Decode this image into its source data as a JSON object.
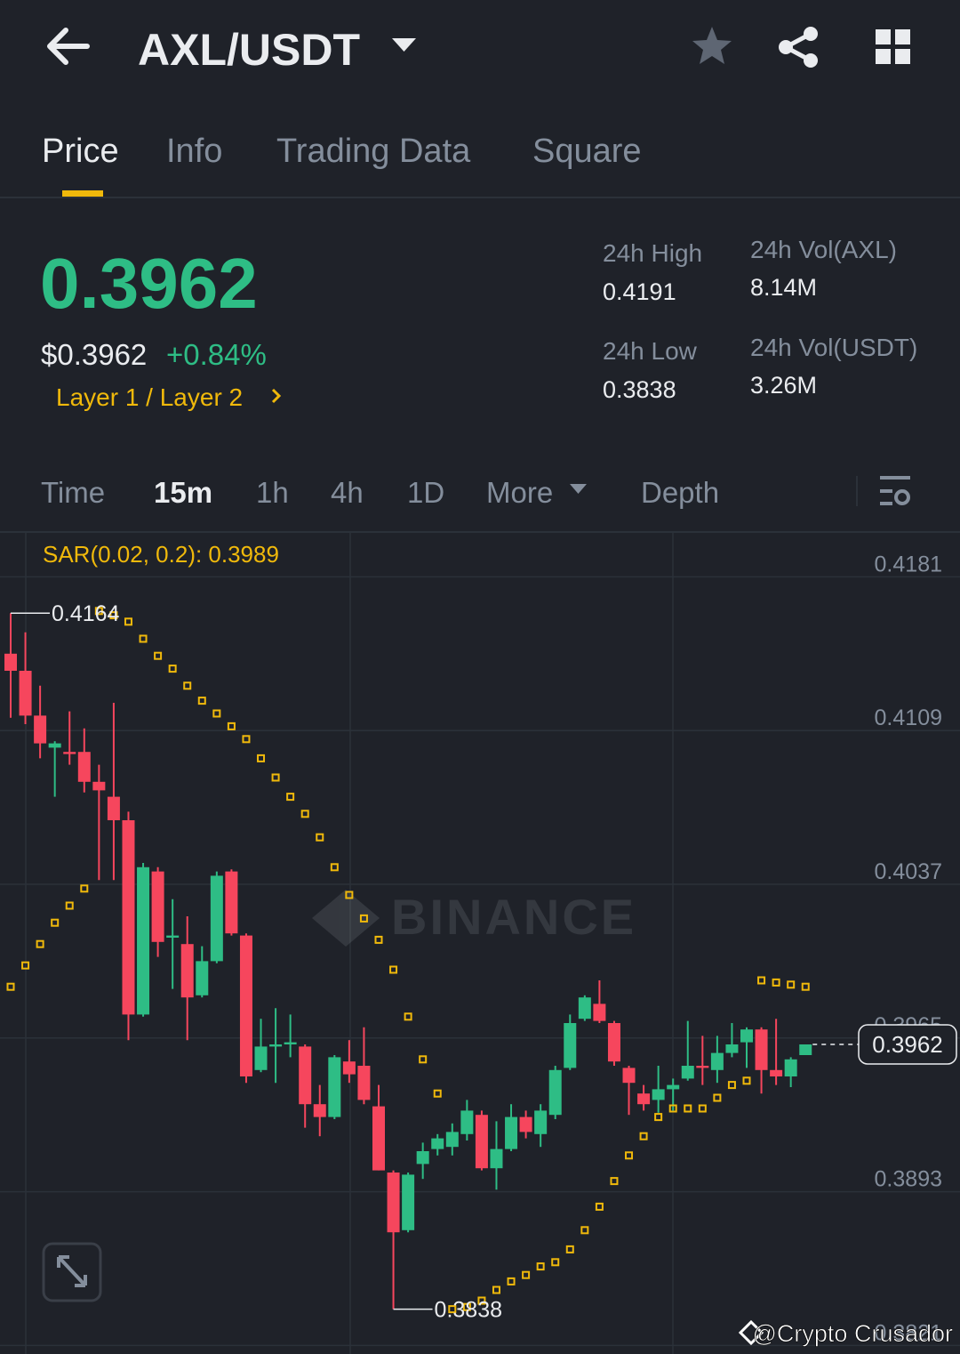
{
  "header": {
    "pair": "AXL/USDT"
  },
  "tabs": [
    "Price",
    "Info",
    "Trading Data",
    "Square"
  ],
  "ticker": {
    "price": "0.3962",
    "usd_price": "$0.3962",
    "change": "+0.84%",
    "tag": "Layer 1 / Layer 2"
  },
  "stats": [
    {
      "label": "24h High",
      "value": "0.4191"
    },
    {
      "label": "24h Vol(AXL)",
      "value": "8.14M"
    },
    {
      "label": "24h Low",
      "value": "0.3838"
    },
    {
      "label": "24h Vol(USDT)",
      "value": "3.26M"
    }
  ],
  "intervals": [
    "Time",
    "15m",
    "1h",
    "4h",
    "1D",
    "More",
    "Depth"
  ],
  "chart_data": {
    "type": "candlestick",
    "indicator": "SAR(0.02, 0.2): 0.3989",
    "ylim": [
      0.3817,
      0.4202
    ],
    "yticks": [
      0.4181,
      0.4109,
      0.4037,
      0.3965,
      0.3893,
      0.3821
    ],
    "grid": true,
    "up_color": "#2ebd85",
    "down_color": "#f6465d",
    "sar_color": "#f0b90b",
    "open": [
      0.4145,
      0.4137,
      0.4116,
      0.4101,
      0.4099,
      0.4099,
      0.4085,
      0.4078,
      0.4067,
      0.3976,
      0.4043,
      0.4012,
      0.4009,
      0.3985,
      0.4001,
      0.4043,
      0.4013,
      0.395,
      0.3961,
      0.3962,
      0.3961,
      0.3934,
      0.3928,
      0.3954,
      0.3952,
      0.3933,
      0.3902,
      0.3875,
      0.3906,
      0.3913,
      0.3914,
      0.392,
      0.3929,
      0.3904,
      0.3913,
      0.3928,
      0.392,
      0.3929,
      0.3951,
      0.3974,
      0.3981,
      0.3972,
      0.3951,
      0.3939,
      0.3936,
      0.3941,
      0.3946,
      0.3952,
      0.395,
      0.3958,
      0.3963,
      0.3969,
      0.395,
      0.3947,
      0.3957
    ],
    "high": [
      0.4164,
      0.4155,
      0.413,
      0.4104,
      0.4118,
      0.411,
      0.4093,
      0.4122,
      0.4071,
      0.4047,
      0.4045,
      0.403,
      0.4022,
      0.4008,
      0.4043,
      0.4044,
      0.4014,
      0.3974,
      0.3979,
      0.3976,
      0.3962,
      0.3943,
      0.3957,
      0.3964,
      0.397,
      0.3943,
      0.3903,
      0.3902,
      0.3916,
      0.392,
      0.3925,
      0.3936,
      0.3931,
      0.3926,
      0.3934,
      0.3931,
      0.3934,
      0.3952,
      0.3976,
      0.3985,
      0.3992,
      0.3973,
      0.3952,
      0.3943,
      0.3952,
      0.3946,
      0.3973,
      0.3966,
      0.3966,
      0.3972,
      0.397,
      0.397,
      0.3974,
      0.3956,
      0.3962
    ],
    "low": [
      0.4115,
      0.4112,
      0.4096,
      0.4078,
      0.4093,
      0.408,
      0.4039,
      0.4039,
      0.3964,
      0.3975,
      0.4003,
      0.3988,
      0.3964,
      0.3984,
      0.4,
      0.4013,
      0.3944,
      0.3949,
      0.3944,
      0.3956,
      0.3923,
      0.3919,
      0.3927,
      0.3944,
      0.3934,
      0.3903,
      0.3838,
      0.3874,
      0.3899,
      0.391,
      0.391,
      0.3917,
      0.3903,
      0.3894,
      0.3912,
      0.3918,
      0.3914,
      0.3927,
      0.395,
      0.3973,
      0.3972,
      0.3952,
      0.3929,
      0.3931,
      0.393,
      0.3931,
      0.3945,
      0.3943,
      0.3944,
      0.3956,
      0.3951,
      0.3939,
      0.3943,
      0.3942,
      0.3957
    ],
    "close": [
      0.4137,
      0.4116,
      0.4103,
      0.4103,
      0.4098,
      0.4085,
      0.4081,
      0.4067,
      0.3976,
      0.4045,
      0.401,
      0.4013,
      0.3984,
      0.4001,
      0.4041,
      0.4014,
      0.3947,
      0.3961,
      0.3962,
      0.3963,
      0.3934,
      0.3928,
      0.3956,
      0.3948,
      0.3936,
      0.3903,
      0.3874,
      0.3901,
      0.3912,
      0.3918,
      0.3921,
      0.3931,
      0.3904,
      0.3913,
      0.3928,
      0.3921,
      0.3931,
      0.395,
      0.3972,
      0.3984,
      0.3973,
      0.3954,
      0.3944,
      0.3934,
      0.3941,
      0.3943,
      0.3952,
      0.3951,
      0.3958,
      0.3962,
      0.3969,
      0.395,
      0.3947,
      0.3955,
      0.3962
    ],
    "sar": [
      0.3989,
      0.3999,
      0.4009,
      0.4019,
      0.4027,
      0.4035,
      0.4165,
      0.4163,
      0.416,
      0.4152,
      0.4144,
      0.4138,
      0.413,
      0.4123,
      0.4117,
      0.4111,
      0.4105,
      0.4096,
      0.4087,
      0.4078,
      0.407,
      0.4059,
      0.4045,
      0.4032,
      0.4021,
      0.4011,
      0.3997,
      0.3975,
      0.3955,
      0.3939,
      0.3838,
      0.3839,
      0.3842,
      0.3847,
      0.3851,
      0.3854,
      0.3858,
      0.386,
      0.3866,
      0.3875,
      0.3886,
      0.3898,
      0.391,
      0.3919,
      0.3928,
      0.3932,
      0.3932,
      0.3932,
      0.3937,
      0.3943,
      0.3945,
      0.3992,
      0.3991,
      0.399,
      0.3989
    ],
    "last_price": 0.3962,
    "max_marker": 0.4164,
    "min_marker": 0.3838
  },
  "watermark": "BINANCE",
  "credit": "@Crypto Crusador"
}
